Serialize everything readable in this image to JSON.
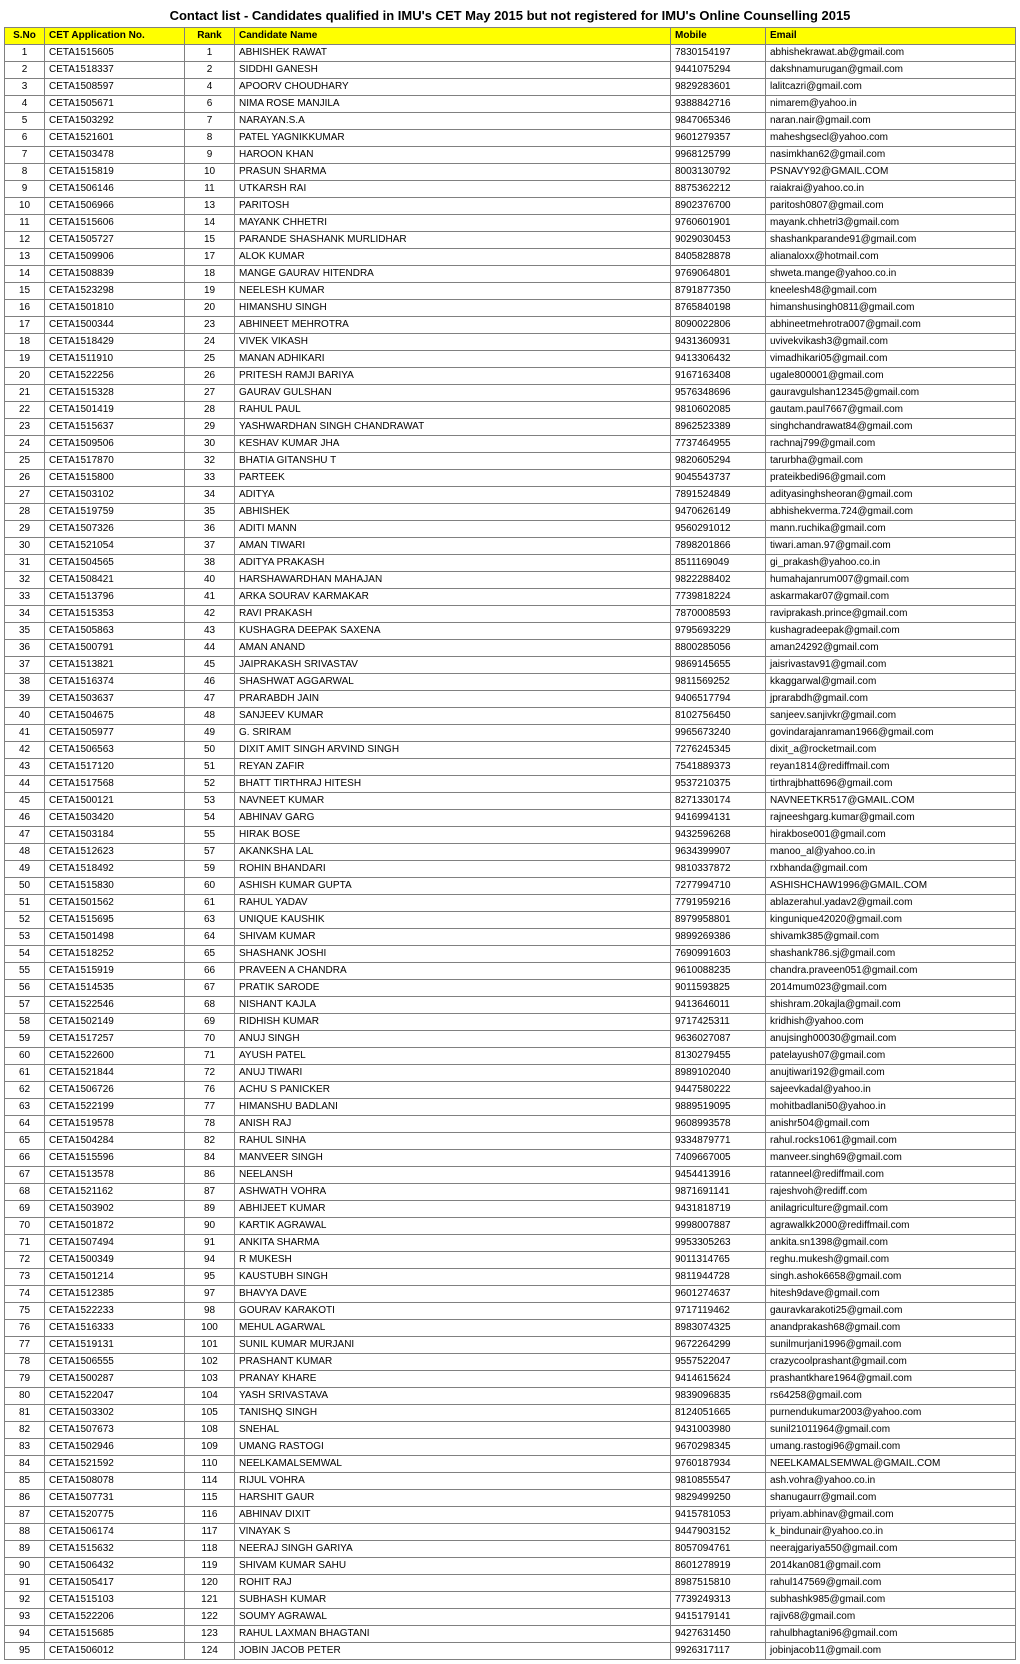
{
  "title": "Contact list - Candidates qualified in IMU's CET May 2015 but not registered for IMU's Online Counselling 2015",
  "columns": [
    "S.No",
    "CET Application No.",
    "Rank",
    "Candidate Name",
    "Mobile",
    "Email"
  ],
  "style": {
    "header_bg": "#ffff00",
    "border_color": "#808080",
    "font_size": 10,
    "title_font_size": 13
  },
  "rows": [
    [
      "1",
      "CETA1515605",
      "1",
      "ABHISHEK RAWAT",
      "7830154197",
      "abhishekrawat.ab@gmail.com"
    ],
    [
      "2",
      "CETA1518337",
      "2",
      "SIDDHI GANESH",
      "9441075294",
      "dakshnamurugan@gmail.com"
    ],
    [
      "3",
      "CETA1508597",
      "4",
      "APOORV CHOUDHARY",
      "9829283601",
      "lalitcazri@gmail.com"
    ],
    [
      "4",
      "CETA1505671",
      "6",
      "NIMA ROSE MANJILA",
      "9388842716",
      "nimarem@yahoo.in"
    ],
    [
      "5",
      "CETA1503292",
      "7",
      "NARAYAN.S.A",
      "9847065346",
      "naran.nair@gmail.com"
    ],
    [
      "6",
      "CETA1521601",
      "8",
      "PATEL YAGNIKKUMAR",
      "9601279357",
      "maheshgsecl@yahoo.com"
    ],
    [
      "7",
      "CETA1503478",
      "9",
      "HAROON KHAN",
      "9968125799",
      "nasimkhan62@gmail.com"
    ],
    [
      "8",
      "CETA1515819",
      "10",
      "PRASUN SHARMA",
      "8003130792",
      "PSNAVY92@GMAIL.COM"
    ],
    [
      "9",
      "CETA1506146",
      "11",
      "UTKARSH RAI",
      "8875362212",
      "raiakrai@yahoo.co.in"
    ],
    [
      "10",
      "CETA1506966",
      "13",
      "PARITOSH",
      "8902376700",
      "paritosh0807@gmail.com"
    ],
    [
      "11",
      "CETA1515606",
      "14",
      "MAYANK CHHETRI",
      "9760601901",
      "mayank.chhetri3@gmail.com"
    ],
    [
      "12",
      "CETA1505727",
      "15",
      "PARANDE SHASHANK MURLIDHAR",
      "9029030453",
      "shashankparande91@gmail.com"
    ],
    [
      "13",
      "CETA1509906",
      "17",
      "ALOK KUMAR",
      "8405828878",
      "alianaloxx@hotmail.com"
    ],
    [
      "14",
      "CETA1508839",
      "18",
      "MANGE GAURAV HITENDRA",
      "9769064801",
      "shweta.mange@yahoo.co.in"
    ],
    [
      "15",
      "CETA1523298",
      "19",
      "NEELESH KUMAR",
      "8791877350",
      "kneelesh48@gmail.com"
    ],
    [
      "16",
      "CETA1501810",
      "20",
      "HIMANSHU SINGH",
      "8765840198",
      "himanshusingh0811@gmail.com"
    ],
    [
      "17",
      "CETA1500344",
      "23",
      "ABHINEET MEHROTRA",
      "8090022806",
      "abhineetmehrotra007@gmail.com"
    ],
    [
      "18",
      "CETA1518429",
      "24",
      "VIVEK VIKASH",
      "9431360931",
      "uvivekvikash3@gmail.com"
    ],
    [
      "19",
      "CETA1511910",
      "25",
      "MANAN ADHIKARI",
      "9413306432",
      "vimadhikari05@gmail.com"
    ],
    [
      "20",
      "CETA1522256",
      "26",
      "PRITESH RAMJI BARIYA",
      "9167163408",
      "ugale800001@gmail.com"
    ],
    [
      "21",
      "CETA1515328",
      "27",
      "GAURAV GULSHAN",
      "9576348696",
      "gauravgulshan12345@gmail.com"
    ],
    [
      "22",
      "CETA1501419",
      "28",
      "RAHUL PAUL",
      "9810602085",
      "gautam.paul7667@gmail.com"
    ],
    [
      "23",
      "CETA1515637",
      "29",
      "YASHWARDHAN SINGH CHANDRAWAT",
      "8962523389",
      "singhchandrawat84@gmail.com"
    ],
    [
      "24",
      "CETA1509506",
      "30",
      "KESHAV KUMAR JHA",
      "7737464955",
      "rachnaj799@gmail.com"
    ],
    [
      "25",
      "CETA1517870",
      "32",
      "BHATIA GITANSHU T",
      "9820605294",
      "tarurbha@gmail.com"
    ],
    [
      "26",
      "CETA1515800",
      "33",
      "PARTEEK",
      "9045543737",
      "prateikbedi96@gmail.com"
    ],
    [
      "27",
      "CETA1503102",
      "34",
      "ADITYA",
      "7891524849",
      "adityasinghsheoran@gmail.com"
    ],
    [
      "28",
      "CETA1519759",
      "35",
      "ABHISHEK",
      "9470626149",
      "abhishekverma.724@gmail.com"
    ],
    [
      "29",
      "CETA1507326",
      "36",
      "ADITI MANN",
      "9560291012",
      "mann.ruchika@gmail.com"
    ],
    [
      "30",
      "CETA1521054",
      "37",
      "AMAN TIWARI",
      "7898201866",
      "tiwari.aman.97@gmail.com"
    ],
    [
      "31",
      "CETA1504565",
      "38",
      "ADITYA PRAKASH",
      "8511169049",
      "gi_prakash@yahoo.co.in"
    ],
    [
      "32",
      "CETA1508421",
      "40",
      "HARSHAWARDHAN MAHAJAN",
      "9822288402",
      "humahajanrum007@gmail.com"
    ],
    [
      "33",
      "CETA1513796",
      "41",
      "ARKA SOURAV KARMAKAR",
      "7739818224",
      "askarmakar07@gmail.com"
    ],
    [
      "34",
      "CETA1515353",
      "42",
      "RAVI PRAKASH",
      "7870008593",
      "raviprakash.prince@gmail.com"
    ],
    [
      "35",
      "CETA1505863",
      "43",
      "KUSHAGRA DEEPAK SAXENA",
      "9795693229",
      "kushagradeepak@gmail.com"
    ],
    [
      "36",
      "CETA1500791",
      "44",
      "AMAN ANAND",
      "8800285056",
      "aman24292@gmail.com"
    ],
    [
      "37",
      "CETA1513821",
      "45",
      "JAIPRAKASH SRIVASTAV",
      "9869145655",
      "jaisrivastav91@gmail.com"
    ],
    [
      "38",
      "CETA1516374",
      "46",
      "SHASHWAT AGGARWAL",
      "9811569252",
      "kkaggarwal@gmail.com"
    ],
    [
      "39",
      "CETA1503637",
      "47",
      "PRARABDH JAIN",
      "9406517794",
      "jprarabdh@gmail.com"
    ],
    [
      "40",
      "CETA1504675",
      "48",
      "SANJEEV KUMAR",
      "8102756450",
      "sanjeev.sanjivkr@gmail.com"
    ],
    [
      "41",
      "CETA1505977",
      "49",
      "G. SRIRAM",
      "9965673240",
      "govindarajanraman1966@gmail.com"
    ],
    [
      "42",
      "CETA1506563",
      "50",
      "DIXIT AMIT SINGH ARVIND SINGH",
      "7276245345",
      "dixit_a@rocketmail.com"
    ],
    [
      "43",
      "CETA1517120",
      "51",
      "REYAN ZAFIR",
      "7541889373",
      "reyan1814@rediffmail.com"
    ],
    [
      "44",
      "CETA1517568",
      "52",
      "BHATT TIRTHRAJ HITESH",
      "9537210375",
      "tirthrajbhatt696@gmail.com"
    ],
    [
      "45",
      "CETA1500121",
      "53",
      "NAVNEET KUMAR",
      "8271330174",
      "NAVNEETKR517@GMAIL.COM"
    ],
    [
      "46",
      "CETA1503420",
      "54",
      "ABHINAV GARG",
      "9416994131",
      "rajneeshgarg.kumar@gmail.com"
    ],
    [
      "47",
      "CETA1503184",
      "55",
      "HIRAK BOSE",
      "9432596268",
      "hirakbose001@gmail.com"
    ],
    [
      "48",
      "CETA1512623",
      "57",
      "AKANKSHA LAL",
      "9634399907",
      "manoo_al@yahoo.co.in"
    ],
    [
      "49",
      "CETA1518492",
      "59",
      "ROHIN BHANDARI",
      "9810337872",
      "rxbhanda@gmail.com"
    ],
    [
      "50",
      "CETA1515830",
      "60",
      "ASHISH KUMAR GUPTA",
      "7277994710",
      "ASHISHCHAW1996@GMAIL.COM"
    ],
    [
      "51",
      "CETA1501562",
      "61",
      "RAHUL YADAV",
      "7791959216",
      "ablazerahul.yadav2@gmail.com"
    ],
    [
      "52",
      "CETA1515695",
      "63",
      "UNIQUE KAUSHIK",
      "8979958801",
      "kingunique42020@gmail.com"
    ],
    [
      "53",
      "CETA1501498",
      "64",
      "SHIVAM KUMAR",
      "9899269386",
      "shivamk385@gmail.com"
    ],
    [
      "54",
      "CETA1518252",
      "65",
      "SHASHANK JOSHI",
      "7690991603",
      "shashank786.sj@gmail.com"
    ],
    [
      "55",
      "CETA1515919",
      "66",
      "PRAVEEN A CHANDRA",
      "9610088235",
      "chandra.praveen051@gmail.com"
    ],
    [
      "56",
      "CETA1514535",
      "67",
      "PRATIK SARODE",
      "9011593825",
      "2014mum023@gmail.com"
    ],
    [
      "57",
      "CETA1522546",
      "68",
      "NISHANT KAJLA",
      "9413646011",
      "shishram.20kajla@gmail.com"
    ],
    [
      "58",
      "CETA1502149",
      "69",
      "RIDHISH KUMAR",
      "9717425311",
      "kridhish@yahoo.com"
    ],
    [
      "59",
      "CETA1517257",
      "70",
      "ANUJ SINGH",
      "9636027087",
      "anujsingh00030@gmail.com"
    ],
    [
      "60",
      "CETA1522600",
      "71",
      "AYUSH PATEL",
      "8130279455",
      "patelayush07@gmail.com"
    ],
    [
      "61",
      "CETA1521844",
      "72",
      "ANUJ TIWARI",
      "8989102040",
      "anujtiwari192@gmail.com"
    ],
    [
      "62",
      "CETA1506726",
      "76",
      "ACHU S PANICKER",
      "9447580222",
      "sajeevkadal@yahoo.in"
    ],
    [
      "63",
      "CETA1522199",
      "77",
      "HIMANSHU BADLANI",
      "9889519095",
      "mohitbadlani50@yahoo.in"
    ],
    [
      "64",
      "CETA1519578",
      "78",
      "ANISH RAJ",
      "9608993578",
      "anishr504@gmail.com"
    ],
    [
      "65",
      "CETA1504284",
      "82",
      "RAHUL SINHA",
      "9334879771",
      "rahul.rocks1061@gmail.com"
    ],
    [
      "66",
      "CETA1515596",
      "84",
      "MANVEER SINGH",
      "7409667005",
      "manveer.singh69@gmail.com"
    ],
    [
      "67",
      "CETA1513578",
      "86",
      "NEELANSH",
      "9454413916",
      "ratanneel@rediffmail.com"
    ],
    [
      "68",
      "CETA1521162",
      "87",
      "ASHWATH VOHRA",
      "9871691141",
      "rajeshvoh@rediff.com"
    ],
    [
      "69",
      "CETA1503902",
      "89",
      "ABHIJEET KUMAR",
      "9431818719",
      "anilagriculture@gmail.com"
    ],
    [
      "70",
      "CETA1501872",
      "90",
      "KARTIK AGRAWAL",
      "9998007887",
      "agrawalkk2000@rediffmail.com"
    ],
    [
      "71",
      "CETA1507494",
      "91",
      "ANKITA SHARMA",
      "9953305263",
      "ankita.sn1398@gmail.com"
    ],
    [
      "72",
      "CETA1500349",
      "94",
      "R MUKESH",
      "9011314765",
      "reghu.mukesh@gmail.com"
    ],
    [
      "73",
      "CETA1501214",
      "95",
      "KAUSTUBH SINGH",
      "9811944728",
      "singh.ashok6658@gmail.com"
    ],
    [
      "74",
      "CETA1512385",
      "97",
      "BHAVYA DAVE",
      "9601274637",
      "hitesh9dave@gmail.com"
    ],
    [
      "75",
      "CETA1522233",
      "98",
      "GOURAV KARAKOTI",
      "9717119462",
      "gauravkarakoti25@gmail.com"
    ],
    [
      "76",
      "CETA1516333",
      "100",
      "MEHUL AGARWAL",
      "8983074325",
      "anandprakash68@gmail.com"
    ],
    [
      "77",
      "CETA1519131",
      "101",
      "SUNIL KUMAR MURJANI",
      "9672264299",
      "sunilmurjani1996@gmail.com"
    ],
    [
      "78",
      "CETA1506555",
      "102",
      "PRASHANT KUMAR",
      "9557522047",
      "crazycoolprashant@gmail.com"
    ],
    [
      "79",
      "CETA1500287",
      "103",
      "PRANAY KHARE",
      "9414615624",
      "prashantkhare1964@gmail.com"
    ],
    [
      "80",
      "CETA1522047",
      "104",
      "YASH SRIVASTAVA",
      "9839096835",
      "rs64258@gmail.com"
    ],
    [
      "81",
      "CETA1503302",
      "105",
      "TANISHQ SINGH",
      "8124051665",
      "purnendukumar2003@yahoo.com"
    ],
    [
      "82",
      "CETA1507673",
      "108",
      "SNEHAL",
      "9431003980",
      "sunil21011964@gmail.com"
    ],
    [
      "83",
      "CETA1502946",
      "109",
      "UMANG RASTOGI",
      "9670298345",
      "umang.rastogi96@gmail.com"
    ],
    [
      "84",
      "CETA1521592",
      "110",
      "NEELKAMALSEMWAL",
      "9760187934",
      "NEELKAMALSEMWAL@GMAIL.COM"
    ],
    [
      "85",
      "CETA1508078",
      "114",
      "RIJUL VOHRA",
      "9810855547",
      "ash.vohra@yahoo.co.in"
    ],
    [
      "86",
      "CETA1507731",
      "115",
      "HARSHIT GAUR",
      "9829499250",
      "shanugaurr@gmail.com"
    ],
    [
      "87",
      "CETA1520775",
      "116",
      "ABHINAV DIXIT",
      "9415781053",
      "priyam.abhinav@gmail.com"
    ],
    [
      "88",
      "CETA1506174",
      "117",
      "VINAYAK S",
      "9447903152",
      "k_bindunair@yahoo.co.in"
    ],
    [
      "89",
      "CETA1515632",
      "118",
      "NEERAJ SINGH GARIYA",
      "8057094761",
      "neerajgariya550@gmail.com"
    ],
    [
      "90",
      "CETA1506432",
      "119",
      "SHIVAM KUMAR SAHU",
      "8601278919",
      "2014kan081@gmail.com"
    ],
    [
      "91",
      "CETA1505417",
      "120",
      "ROHIT RAJ",
      "8987515810",
      "rahul147569@gmail.com"
    ],
    [
      "92",
      "CETA1515103",
      "121",
      "SUBHASH KUMAR",
      "7739249313",
      "subhashk985@gmail.com"
    ],
    [
      "93",
      "CETA1522206",
      "122",
      "SOUMY AGRAWAL",
      "9415179141",
      "rajiv68@gmail.com"
    ],
    [
      "94",
      "CETA1515685",
      "123",
      "RAHUL LAXMAN BHAGTANI",
      "9427631450",
      "rahulbhagtani96@gmail.com"
    ],
    [
      "95",
      "CETA1506012",
      "124",
      "JOBIN JACOB PETER",
      "9926317117",
      "jobinjacob11@gmail.com"
    ]
  ]
}
